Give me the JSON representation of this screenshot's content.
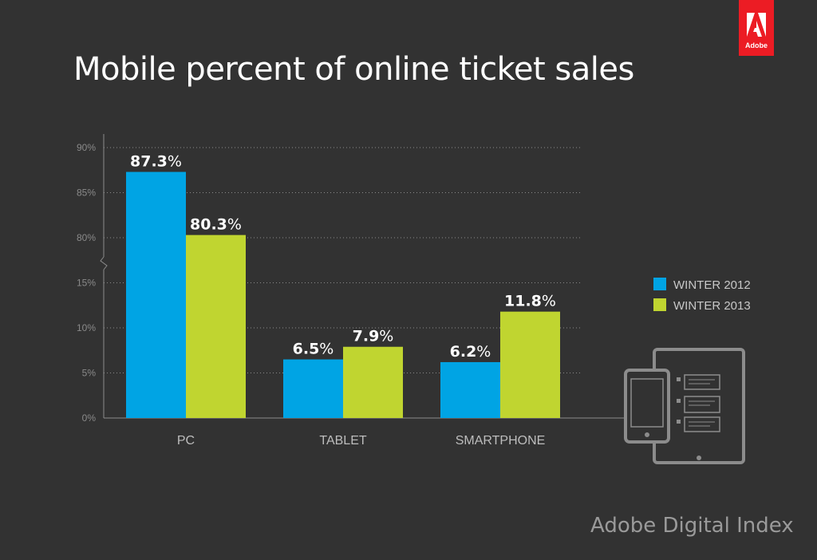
{
  "brand": {
    "logo_text": "Adobe",
    "footer": "Adobe Digital Index",
    "accent_color": "#ec1c24"
  },
  "chart_data": {
    "type": "bar",
    "title": "Mobile percent of online ticket sales",
    "categories": [
      "PC",
      "TABLET",
      "SMARTPHONE"
    ],
    "series": [
      {
        "name": "WINTER 2012",
        "color": "#00a4e4",
        "values": [
          87.3,
          6.5,
          6.2
        ],
        "labels": [
          "87.3%",
          "6.5%",
          "6.2%"
        ]
      },
      {
        "name": "WINTER 2013",
        "color": "#c0d530",
        "values": [
          80.3,
          7.9,
          11.8
        ],
        "labels": [
          "80.3%",
          "7.9%",
          "11.8%"
        ]
      }
    ],
    "y_axis": {
      "broken": true,
      "lower_segment": [
        0,
        15
      ],
      "upper_segment": [
        80,
        90
      ],
      "ticks": [
        0,
        5,
        10,
        15,
        80,
        85,
        90
      ],
      "tick_labels": [
        "0%",
        "5%",
        "10%",
        "15%",
        "80%",
        "85%",
        "90%"
      ]
    },
    "grid": true,
    "legend": "right",
    "icon": "tablet-smartphone-icon"
  }
}
